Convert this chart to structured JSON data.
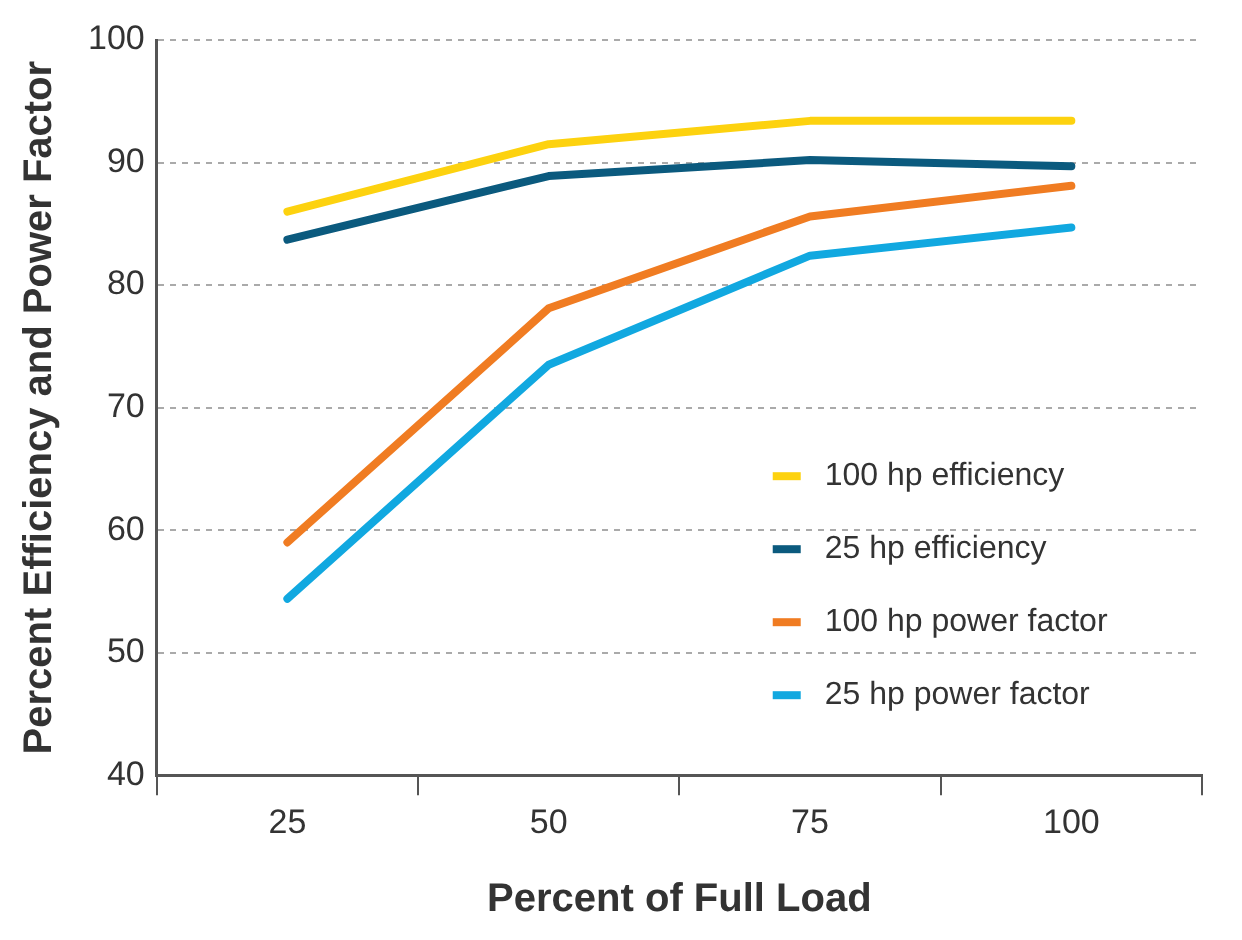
{
  "chart_data": {
    "type": "line",
    "xlabel": "Percent of Full Load",
    "ylabel": "Percent Efficiency and Power Factor",
    "categories": [
      "25",
      "50",
      "75",
      "100"
    ],
    "series": [
      {
        "name": "100 hp efficiency",
        "color": "#fdd20f",
        "values": [
          86,
          91.5,
          93.4,
          93.4
        ]
      },
      {
        "name": "25 hp efficiency",
        "color": "#0b5a7e",
        "values": [
          83.7,
          88.9,
          90.2,
          89.7
        ]
      },
      {
        "name": "100 hp power factor",
        "color": "#f07c22",
        "values": [
          59,
          78.1,
          85.6,
          88.1
        ]
      },
      {
        "name": "25 hp power factor",
        "color": "#11a8e0",
        "values": [
          54.4,
          73.5,
          82.4,
          84.7
        ]
      }
    ],
    "ylim": [
      40,
      100
    ],
    "yticks": [
      40,
      50,
      60,
      70,
      80,
      90,
      100
    ],
    "grid": "y",
    "legend": "bottom right",
    "marker": "none",
    "line_style": "solid"
  }
}
